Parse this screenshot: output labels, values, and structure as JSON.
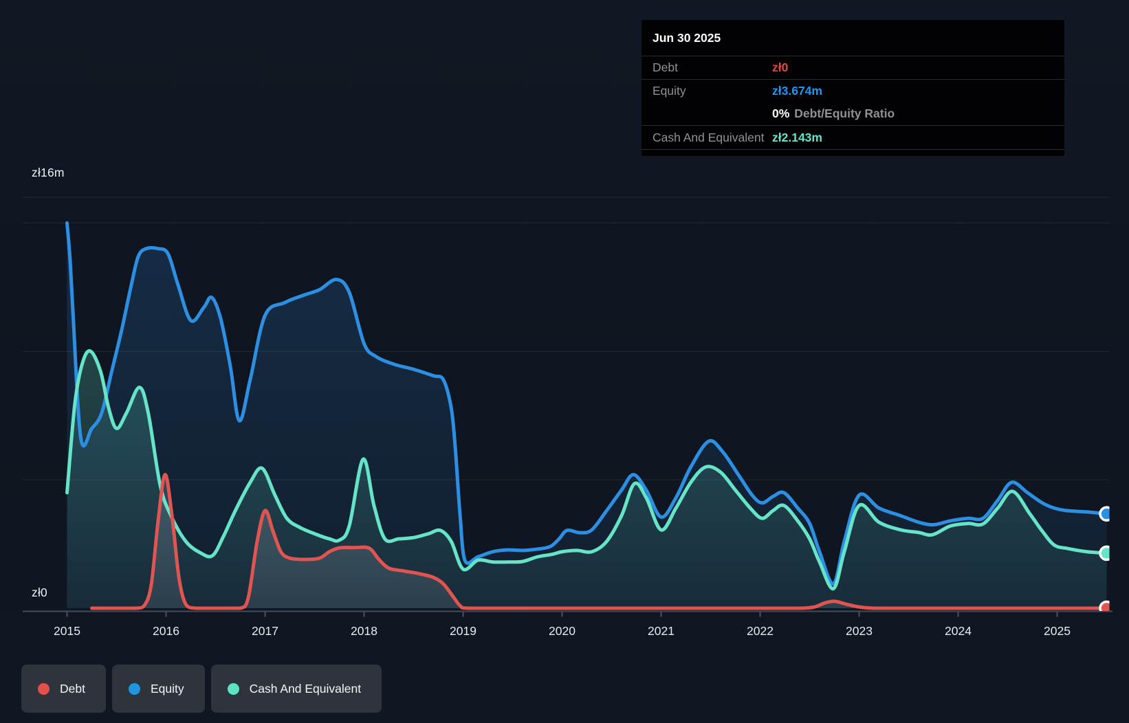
{
  "tooltip": {
    "date": "Jun 30 2025",
    "debt_label": "Debt",
    "debt_value": "zł0",
    "equity_label": "Equity",
    "equity_value": "zł3.674m",
    "ratio_value": "0%",
    "ratio_label": "Debt/Equity Ratio",
    "cash_label": "Cash And Equivalent",
    "cash_value": "zł2.143m"
  },
  "legend": {
    "debt": "Debt",
    "equity": "Equity",
    "cash": "Cash And Equivalent"
  },
  "colors": {
    "debt_line": "#e05551",
    "equity_line": "#2d8fe2",
    "cash_line": "#66e4c8",
    "debt_dot": "#e3504a",
    "equity_dot": "#2196e0",
    "cash_dot": "#5ce3c4",
    "debt_value": "#e8453f",
    "equity_value": "#2196f3",
    "cash_value": "#63e6c9",
    "grid": "rgba(255,255,255,0.09)",
    "axis": "#3a434f",
    "tick": "#49525d"
  },
  "chart_data": {
    "type": "area",
    "x_tick_labels": [
      "2015",
      "2016",
      "2017",
      "2018",
      "2019",
      "2020",
      "2021",
      "2022",
      "2023",
      "2024",
      "2025"
    ],
    "x_domain": [
      2015,
      2025.5
    ],
    "ylim": [
      0,
      16
    ],
    "y_axis": {
      "top_label": "zł16m",
      "zero_label": "zł0",
      "gridline_values_m": [
        16,
        15,
        10,
        5
      ]
    },
    "grid": true,
    "legend_position": "bottom-left",
    "series": [
      {
        "name": "Debt",
        "slug": "debt",
        "points": [
          [
            2015.25,
            0
          ],
          [
            2015.5,
            0
          ],
          [
            2015.7,
            0
          ],
          [
            2015.78,
            0.1
          ],
          [
            2015.85,
            0.9
          ],
          [
            2015.92,
            3.4
          ],
          [
            2015.99,
            5.2
          ],
          [
            2016.06,
            3.6
          ],
          [
            2016.13,
            1.2
          ],
          [
            2016.2,
            0.15
          ],
          [
            2016.3,
            0
          ],
          [
            2016.55,
            0
          ],
          [
            2016.75,
            0
          ],
          [
            2016.83,
            0.4
          ],
          [
            2016.92,
            2.6
          ],
          [
            2017.0,
            3.8
          ],
          [
            2017.08,
            3.0
          ],
          [
            2017.16,
            2.2
          ],
          [
            2017.25,
            1.95
          ],
          [
            2017.4,
            1.9
          ],
          [
            2017.55,
            1.95
          ],
          [
            2017.65,
            2.2
          ],
          [
            2017.75,
            2.35
          ],
          [
            2017.9,
            2.36
          ],
          [
            2018.05,
            2.34
          ],
          [
            2018.15,
            1.9
          ],
          [
            2018.25,
            1.56
          ],
          [
            2018.4,
            1.45
          ],
          [
            2018.55,
            1.35
          ],
          [
            2018.7,
            1.2
          ],
          [
            2018.8,
            0.95
          ],
          [
            2018.9,
            0.45
          ],
          [
            2018.97,
            0.1
          ],
          [
            2019.05,
            0
          ],
          [
            2019.5,
            0
          ],
          [
            2020.0,
            0
          ],
          [
            2020.5,
            0
          ],
          [
            2021.0,
            0
          ],
          [
            2021.5,
            0
          ],
          [
            2022.0,
            0
          ],
          [
            2022.4,
            0
          ],
          [
            2022.55,
            0.05
          ],
          [
            2022.65,
            0.2
          ],
          [
            2022.75,
            0.27
          ],
          [
            2022.88,
            0.15
          ],
          [
            2023.0,
            0.05
          ],
          [
            2023.15,
            0
          ],
          [
            2023.5,
            0
          ],
          [
            2024.0,
            0
          ],
          [
            2024.5,
            0
          ],
          [
            2025.0,
            0
          ],
          [
            2025.5,
            0
          ]
        ]
      },
      {
        "name": "Equity",
        "slug": "equity",
        "points": [
          [
            2015.0,
            15.0
          ],
          [
            2015.03,
            13.6
          ],
          [
            2015.06,
            11.5
          ],
          [
            2015.14,
            6.6
          ],
          [
            2015.25,
            7.0
          ],
          [
            2015.35,
            7.6
          ],
          [
            2015.45,
            9.2
          ],
          [
            2015.55,
            10.8
          ],
          [
            2015.65,
            12.6
          ],
          [
            2015.72,
            13.7
          ],
          [
            2015.8,
            14.0
          ],
          [
            2015.92,
            14.0
          ],
          [
            2016.02,
            13.8
          ],
          [
            2016.12,
            12.6
          ],
          [
            2016.25,
            11.2
          ],
          [
            2016.38,
            11.7
          ],
          [
            2016.46,
            12.1
          ],
          [
            2016.55,
            11.3
          ],
          [
            2016.65,
            9.4
          ],
          [
            2016.74,
            7.3
          ],
          [
            2016.85,
            8.9
          ],
          [
            2017.0,
            11.4
          ],
          [
            2017.2,
            11.9
          ],
          [
            2017.4,
            12.2
          ],
          [
            2017.55,
            12.4
          ],
          [
            2017.72,
            12.8
          ],
          [
            2017.85,
            12.3
          ],
          [
            2018.0,
            10.3
          ],
          [
            2018.12,
            9.8
          ],
          [
            2018.3,
            9.5
          ],
          [
            2018.5,
            9.3
          ],
          [
            2018.7,
            9.05
          ],
          [
            2018.8,
            8.9
          ],
          [
            2018.88,
            7.8
          ],
          [
            2018.92,
            6.3
          ],
          [
            2018.97,
            3.6
          ],
          [
            2019.02,
            1.85
          ],
          [
            2019.15,
            2.0
          ],
          [
            2019.3,
            2.2
          ],
          [
            2019.45,
            2.27
          ],
          [
            2019.6,
            2.25
          ],
          [
            2019.75,
            2.3
          ],
          [
            2019.88,
            2.4
          ],
          [
            2019.97,
            2.7
          ],
          [
            2020.05,
            3.03
          ],
          [
            2020.18,
            2.94
          ],
          [
            2020.3,
            3.05
          ],
          [
            2020.45,
            3.8
          ],
          [
            2020.6,
            4.6
          ],
          [
            2020.72,
            5.2
          ],
          [
            2020.85,
            4.6
          ],
          [
            2021.0,
            3.55
          ],
          [
            2021.15,
            4.3
          ],
          [
            2021.3,
            5.5
          ],
          [
            2021.48,
            6.5
          ],
          [
            2021.62,
            6.1
          ],
          [
            2021.78,
            5.2
          ],
          [
            2021.92,
            4.4
          ],
          [
            2022.02,
            4.1
          ],
          [
            2022.13,
            4.35
          ],
          [
            2022.24,
            4.5
          ],
          [
            2022.38,
            3.9
          ],
          [
            2022.5,
            3.3
          ],
          [
            2022.6,
            2.2
          ],
          [
            2022.74,
            0.95
          ],
          [
            2022.85,
            2.6
          ],
          [
            2023.0,
            4.4
          ],
          [
            2023.2,
            3.9
          ],
          [
            2023.42,
            3.6
          ],
          [
            2023.6,
            3.35
          ],
          [
            2023.75,
            3.25
          ],
          [
            2023.92,
            3.4
          ],
          [
            2024.1,
            3.5
          ],
          [
            2024.25,
            3.5
          ],
          [
            2024.4,
            4.2
          ],
          [
            2024.54,
            4.9
          ],
          [
            2024.7,
            4.5
          ],
          [
            2024.85,
            4.1
          ],
          [
            2024.97,
            3.9
          ],
          [
            2025.1,
            3.8
          ],
          [
            2025.3,
            3.75
          ],
          [
            2025.5,
            3.674
          ]
        ]
      },
      {
        "name": "Cash And Equivalent",
        "slug": "cash-and-equivalent",
        "points": [
          [
            2015.0,
            4.5
          ],
          [
            2015.08,
            8.0
          ],
          [
            2015.16,
            9.6
          ],
          [
            2015.24,
            10.0
          ],
          [
            2015.34,
            9.2
          ],
          [
            2015.42,
            7.8
          ],
          [
            2015.5,
            7.0
          ],
          [
            2015.6,
            7.6
          ],
          [
            2015.73,
            8.6
          ],
          [
            2015.82,
            7.6
          ],
          [
            2015.94,
            4.8
          ],
          [
            2016.05,
            3.6
          ],
          [
            2016.2,
            2.6
          ],
          [
            2016.35,
            2.15
          ],
          [
            2016.47,
            2.05
          ],
          [
            2016.58,
            2.8
          ],
          [
            2016.7,
            3.8
          ],
          [
            2016.85,
            4.9
          ],
          [
            2016.97,
            5.45
          ],
          [
            2017.1,
            4.4
          ],
          [
            2017.22,
            3.5
          ],
          [
            2017.35,
            3.15
          ],
          [
            2017.5,
            2.9
          ],
          [
            2017.65,
            2.7
          ],
          [
            2017.75,
            2.65
          ],
          [
            2017.85,
            3.2
          ],
          [
            2017.99,
            5.8
          ],
          [
            2018.1,
            4.0
          ],
          [
            2018.21,
            2.7
          ],
          [
            2018.35,
            2.7
          ],
          [
            2018.5,
            2.75
          ],
          [
            2018.65,
            2.9
          ],
          [
            2018.77,
            3.03
          ],
          [
            2018.88,
            2.6
          ],
          [
            2019.0,
            1.52
          ],
          [
            2019.15,
            1.87
          ],
          [
            2019.3,
            1.8
          ],
          [
            2019.45,
            1.8
          ],
          [
            2019.6,
            1.82
          ],
          [
            2019.75,
            2.0
          ],
          [
            2019.9,
            2.1
          ],
          [
            2020.0,
            2.2
          ],
          [
            2020.15,
            2.25
          ],
          [
            2020.3,
            2.2
          ],
          [
            2020.45,
            2.6
          ],
          [
            2020.6,
            3.6
          ],
          [
            2020.73,
            4.85
          ],
          [
            2020.85,
            4.3
          ],
          [
            2021.0,
            3.05
          ],
          [
            2021.15,
            3.9
          ],
          [
            2021.3,
            4.9
          ],
          [
            2021.45,
            5.5
          ],
          [
            2021.6,
            5.3
          ],
          [
            2021.75,
            4.6
          ],
          [
            2021.9,
            3.9
          ],
          [
            2022.02,
            3.5
          ],
          [
            2022.13,
            3.8
          ],
          [
            2022.24,
            4.0
          ],
          [
            2022.38,
            3.4
          ],
          [
            2022.5,
            2.7
          ],
          [
            2022.6,
            1.8
          ],
          [
            2022.74,
            0.76
          ],
          [
            2022.85,
            2.2
          ],
          [
            2023.0,
            4.0
          ],
          [
            2023.2,
            3.35
          ],
          [
            2023.42,
            3.05
          ],
          [
            2023.6,
            2.95
          ],
          [
            2023.74,
            2.86
          ],
          [
            2023.92,
            3.2
          ],
          [
            2024.1,
            3.3
          ],
          [
            2024.25,
            3.28
          ],
          [
            2024.4,
            3.9
          ],
          [
            2024.55,
            4.55
          ],
          [
            2024.72,
            3.7
          ],
          [
            2024.85,
            3.0
          ],
          [
            2024.97,
            2.46
          ],
          [
            2025.1,
            2.33
          ],
          [
            2025.3,
            2.2
          ],
          [
            2025.5,
            2.143
          ]
        ]
      }
    ],
    "end_markers": [
      {
        "series": "Equity",
        "value": 3.674
      },
      {
        "series": "Cash And Equivalent",
        "value": 2.143
      },
      {
        "series": "Debt",
        "value": 0
      }
    ]
  }
}
